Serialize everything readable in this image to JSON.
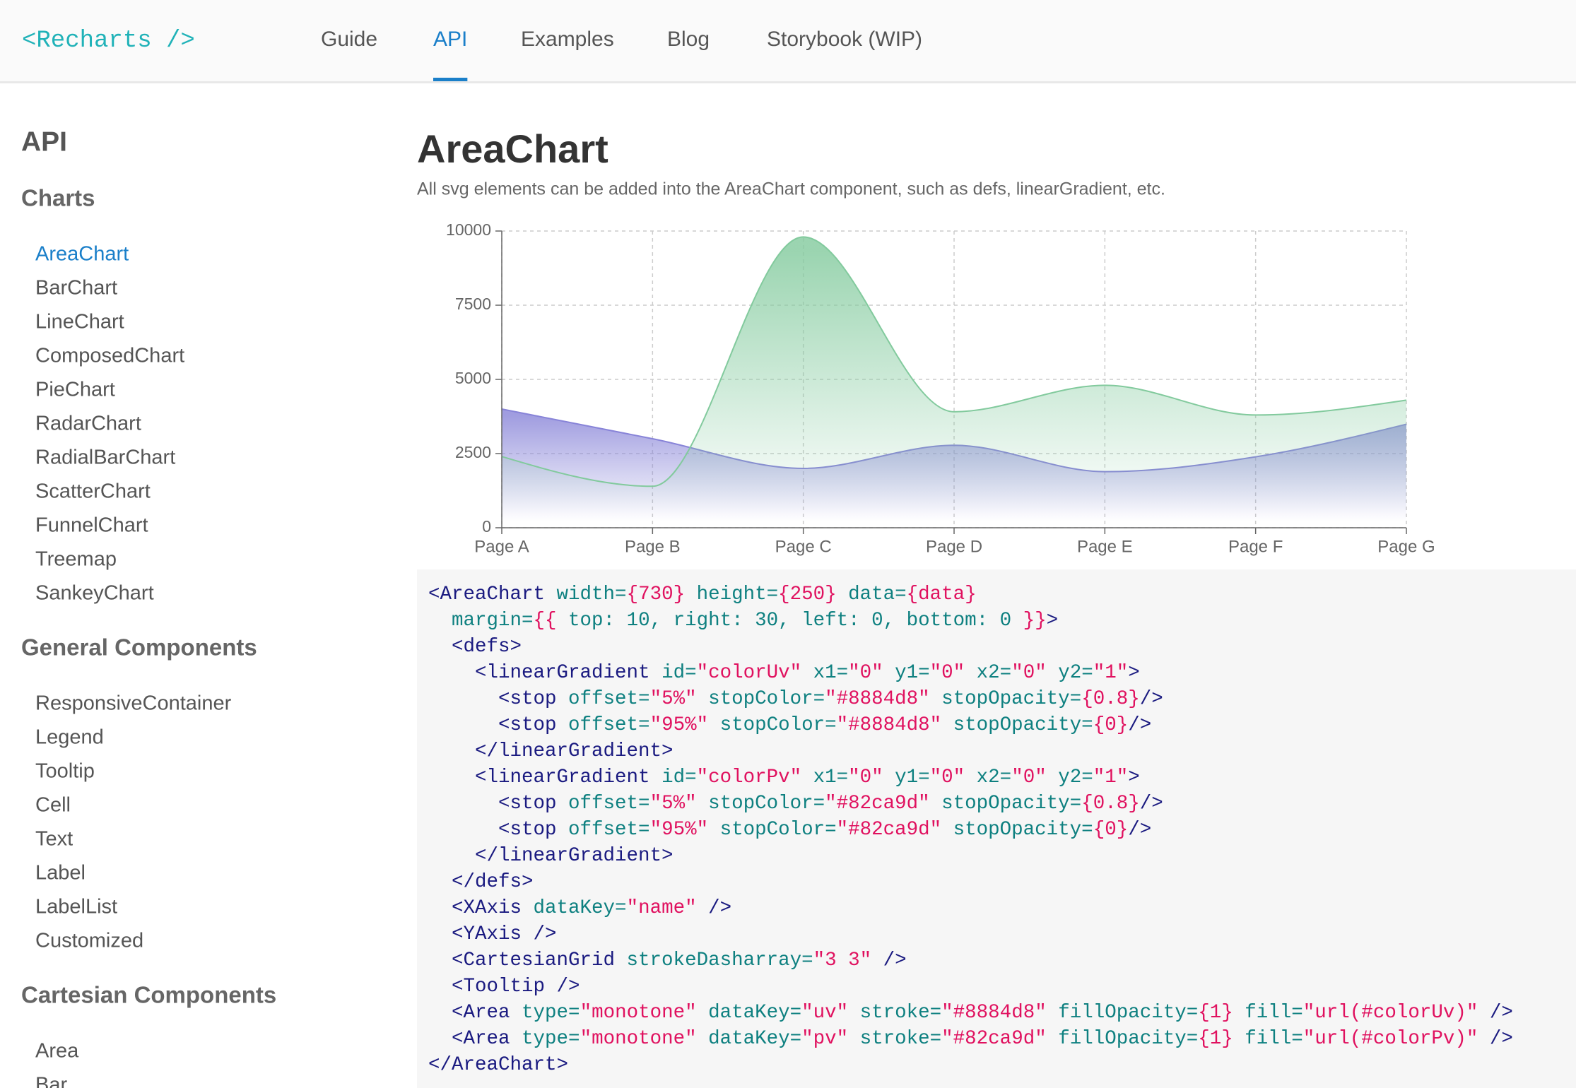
{
  "header": {
    "logo": "<Recharts />",
    "nav": [
      "Guide",
      "API",
      "Examples",
      "Blog",
      "Storybook (WIP)"
    ],
    "active": 1
  },
  "sidebar": {
    "title": "API",
    "sections": [
      {
        "heading": "Charts",
        "active": 0,
        "items": [
          "AreaChart",
          "BarChart",
          "LineChart",
          "ComposedChart",
          "PieChart",
          "RadarChart",
          "RadialBarChart",
          "ScatterChart",
          "FunnelChart",
          "Treemap",
          "SankeyChart"
        ]
      },
      {
        "heading": "General Components",
        "items": [
          "ResponsiveContainer",
          "Legend",
          "Tooltip",
          "Cell",
          "Text",
          "Label",
          "LabelList",
          "Customized"
        ]
      },
      {
        "heading": "Cartesian Components",
        "items": [
          "Area",
          "Bar"
        ]
      }
    ]
  },
  "main": {
    "title": "AreaChart",
    "description": "All svg elements can be added into the AreaChart component, such as defs, linearGradient, etc."
  },
  "chart_data": {
    "type": "area",
    "categories": [
      "Page A",
      "Page B",
      "Page C",
      "Page D",
      "Page E",
      "Page F",
      "Page G"
    ],
    "series": [
      {
        "name": "uv",
        "color": "#8884d8",
        "values": [
          4000,
          3000,
          2000,
          2780,
          1890,
          2390,
          3490
        ]
      },
      {
        "name": "pv",
        "color": "#82ca9d",
        "values": [
          2400,
          1398,
          9800,
          3908,
          4800,
          3800,
          4300
        ]
      }
    ],
    "ylim": [
      0,
      10000
    ],
    "yticks": [
      0,
      2500,
      5000,
      7500,
      10000
    ],
    "grid": true
  },
  "code": {
    "lines": [
      [
        [
          "<AreaChart",
          "#1a1a80"
        ],
        [
          " width=",
          "#0e8080"
        ],
        [
          "{730}",
          "#e0115f"
        ],
        [
          " height=",
          "#0e8080"
        ],
        [
          "{250}",
          "#e0115f"
        ],
        [
          " data=",
          "#0e8080"
        ],
        [
          "{data}",
          "#e0115f"
        ]
      ],
      [
        [
          "  margin=",
          "#0e8080"
        ],
        [
          "{{",
          "#e0115f"
        ],
        [
          " top: 10, right: 30, left: 0, bottom: 0 ",
          "#0e8080"
        ],
        [
          "}}",
          "#e0115f"
        ],
        [
          ">",
          "#1a1a80"
        ]
      ],
      [
        [
          "  <defs>",
          "#1a1a80"
        ]
      ],
      [
        [
          "    <linearGradient",
          "#1a1a80"
        ],
        [
          " id=",
          "#0e8080"
        ],
        [
          "\"colorUv\"",
          "#e0115f"
        ],
        [
          " x1=",
          "#0e8080"
        ],
        [
          "\"0\"",
          "#e0115f"
        ],
        [
          " y1=",
          "#0e8080"
        ],
        [
          "\"0\"",
          "#e0115f"
        ],
        [
          " x2=",
          "#0e8080"
        ],
        [
          "\"0\"",
          "#e0115f"
        ],
        [
          " y2=",
          "#0e8080"
        ],
        [
          "\"1\"",
          "#e0115f"
        ],
        [
          ">",
          "#1a1a80"
        ]
      ],
      [
        [
          "      <stop",
          "#1a1a80"
        ],
        [
          " offset=",
          "#0e8080"
        ],
        [
          "\"5%\"",
          "#e0115f"
        ],
        [
          " stopColor=",
          "#0e8080"
        ],
        [
          "\"#8884d8\"",
          "#e0115f"
        ],
        [
          " stopOpacity=",
          "#0e8080"
        ],
        [
          "{0.8}",
          "#e0115f"
        ],
        [
          "/>",
          "#1a1a80"
        ]
      ],
      [
        [
          "      <stop",
          "#1a1a80"
        ],
        [
          " offset=",
          "#0e8080"
        ],
        [
          "\"95%\"",
          "#e0115f"
        ],
        [
          " stopColor=",
          "#0e8080"
        ],
        [
          "\"#8884d8\"",
          "#e0115f"
        ],
        [
          " stopOpacity=",
          "#0e8080"
        ],
        [
          "{0}",
          "#e0115f"
        ],
        [
          "/>",
          "#1a1a80"
        ]
      ],
      [
        [
          "    </linearGradient>",
          "#1a1a80"
        ]
      ],
      [
        [
          "    <linearGradient",
          "#1a1a80"
        ],
        [
          " id=",
          "#0e8080"
        ],
        [
          "\"colorPv\"",
          "#e0115f"
        ],
        [
          " x1=",
          "#0e8080"
        ],
        [
          "\"0\"",
          "#e0115f"
        ],
        [
          " y1=",
          "#0e8080"
        ],
        [
          "\"0\"",
          "#e0115f"
        ],
        [
          " x2=",
          "#0e8080"
        ],
        [
          "\"0\"",
          "#e0115f"
        ],
        [
          " y2=",
          "#0e8080"
        ],
        [
          "\"1\"",
          "#e0115f"
        ],
        [
          ">",
          "#1a1a80"
        ]
      ],
      [
        [
          "      <stop",
          "#1a1a80"
        ],
        [
          " offset=",
          "#0e8080"
        ],
        [
          "\"5%\"",
          "#e0115f"
        ],
        [
          " stopColor=",
          "#0e8080"
        ],
        [
          "\"#82ca9d\"",
          "#e0115f"
        ],
        [
          " stopOpacity=",
          "#0e8080"
        ],
        [
          "{0.8}",
          "#e0115f"
        ],
        [
          "/>",
          "#1a1a80"
        ]
      ],
      [
        [
          "      <stop",
          "#1a1a80"
        ],
        [
          " offset=",
          "#0e8080"
        ],
        [
          "\"95%\"",
          "#e0115f"
        ],
        [
          " stopColor=",
          "#0e8080"
        ],
        [
          "\"#82ca9d\"",
          "#e0115f"
        ],
        [
          " stopOpacity=",
          "#0e8080"
        ],
        [
          "{0}",
          "#e0115f"
        ],
        [
          "/>",
          "#1a1a80"
        ]
      ],
      [
        [
          "    </linearGradient>",
          "#1a1a80"
        ]
      ],
      [
        [
          "  </defs>",
          "#1a1a80"
        ]
      ],
      [
        [
          "  <XAxis",
          "#1a1a80"
        ],
        [
          " dataKey=",
          "#0e8080"
        ],
        [
          "\"name\"",
          "#e0115f"
        ],
        [
          " />",
          "#1a1a80"
        ]
      ],
      [
        [
          "  <YAxis />",
          "#1a1a80"
        ]
      ],
      [
        [
          "  <CartesianGrid",
          "#1a1a80"
        ],
        [
          " strokeDasharray=",
          "#0e8080"
        ],
        [
          "\"3 3\"",
          "#e0115f"
        ],
        [
          " />",
          "#1a1a80"
        ]
      ],
      [
        [
          "  <Tooltip />",
          "#1a1a80"
        ]
      ],
      [
        [
          "  <Area",
          "#1a1a80"
        ],
        [
          " type=",
          "#0e8080"
        ],
        [
          "\"monotone\"",
          "#e0115f"
        ],
        [
          " dataKey=",
          "#0e8080"
        ],
        [
          "\"uv\"",
          "#e0115f"
        ],
        [
          " stroke=",
          "#0e8080"
        ],
        [
          "\"#8884d8\"",
          "#e0115f"
        ],
        [
          " fillOpacity=",
          "#0e8080"
        ],
        [
          "{1}",
          "#e0115f"
        ],
        [
          " fill=",
          "#0e8080"
        ],
        [
          "\"url(#colorUv)\"",
          "#e0115f"
        ],
        [
          " />",
          "#1a1a80"
        ]
      ],
      [
        [
          "  <Area",
          "#1a1a80"
        ],
        [
          " type=",
          "#0e8080"
        ],
        [
          "\"monotone\"",
          "#e0115f"
        ],
        [
          " dataKey=",
          "#0e8080"
        ],
        [
          "\"pv\"",
          "#e0115f"
        ],
        [
          " stroke=",
          "#0e8080"
        ],
        [
          "\"#82ca9d\"",
          "#e0115f"
        ],
        [
          " fillOpacity=",
          "#0e8080"
        ],
        [
          "{1}",
          "#e0115f"
        ],
        [
          " fill=",
          "#0e8080"
        ],
        [
          "\"url(#colorPv)\"",
          "#e0115f"
        ],
        [
          " />",
          "#1a1a80"
        ]
      ],
      [
        [
          "</AreaChart>",
          "#1a1a80"
        ]
      ]
    ]
  }
}
